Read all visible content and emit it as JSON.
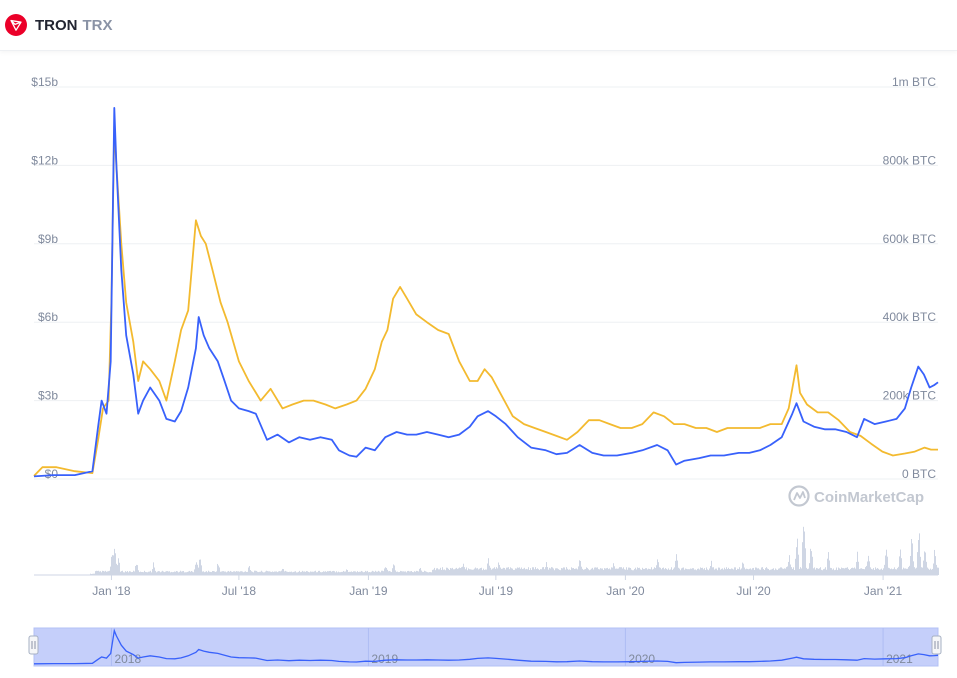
{
  "header": {
    "name": "TRON",
    "symbol": "TRX",
    "logo_icon": "tron-logo-icon"
  },
  "watermark": "CoinMarketCap",
  "colors": {
    "market_cap": "#3861fb",
    "price_btc": "#f3ba2f",
    "volume": "#cfd6e4",
    "navigator_fill": "#c5cffa",
    "grid": "#eef0f3",
    "tick_text": "#808a9d"
  },
  "chart_data": {
    "type": "line",
    "left_axis": {
      "ticks": [
        "$0",
        "$3b",
        "$6b",
        "$9b",
        "$12b",
        "$15b"
      ],
      "ylim": [
        0,
        15
      ]
    },
    "right_axis": {
      "ticks": [
        "0 BTC",
        "200k BTC",
        "400k BTC",
        "600k BTC",
        "800k BTC",
        "1m BTC"
      ],
      "ylim": [
        0,
        1000
      ]
    },
    "x_ticks": [
      "Jan '18",
      "Jul '18",
      "Jan '19",
      "Jul '19",
      "Jan '20",
      "Jul '20",
      "Jan '21"
    ],
    "x_tick_dates": [
      "2018-01-01",
      "2018-07-01",
      "2019-01-01",
      "2019-07-01",
      "2020-01-01",
      "2020-07-01",
      "2021-01-01"
    ],
    "xlim": [
      "2017-09-13",
      "2021-03-20"
    ],
    "navigator_ticks": [
      "2018",
      "2019",
      "2020",
      "2021"
    ],
    "series": [
      {
        "key": "market_cap",
        "units": "$b",
        "points": [
          [
            "2017-09-13",
            0.1
          ],
          [
            "2017-10-10",
            0.15
          ],
          [
            "2017-11-10",
            0.15
          ],
          [
            "2017-12-05",
            0.3
          ],
          [
            "2017-12-13",
            2.0
          ],
          [
            "2017-12-18",
            3.0
          ],
          [
            "2017-12-25",
            2.5
          ],
          [
            "2017-12-31",
            4.5
          ],
          [
            "2018-01-05",
            14.2
          ],
          [
            "2018-01-08",
            12.0
          ],
          [
            "2018-01-15",
            8.0
          ],
          [
            "2018-01-22",
            5.5
          ],
          [
            "2018-02-01",
            4.0
          ],
          [
            "2018-02-08",
            2.5
          ],
          [
            "2018-02-15",
            3.0
          ],
          [
            "2018-02-25",
            3.5
          ],
          [
            "2018-03-10",
            3.0
          ],
          [
            "2018-03-20",
            2.3
          ],
          [
            "2018-04-01",
            2.2
          ],
          [
            "2018-04-10",
            2.6
          ],
          [
            "2018-04-20",
            3.5
          ],
          [
            "2018-05-01",
            5.0
          ],
          [
            "2018-05-05",
            6.2
          ],
          [
            "2018-05-12",
            5.5
          ],
          [
            "2018-05-20",
            5.0
          ],
          [
            "2018-06-01",
            4.5
          ],
          [
            "2018-06-10",
            3.8
          ],
          [
            "2018-06-20",
            3.0
          ],
          [
            "2018-07-01",
            2.7
          ],
          [
            "2018-07-15",
            2.6
          ],
          [
            "2018-07-25",
            2.5
          ],
          [
            "2018-08-10",
            1.5
          ],
          [
            "2018-08-25",
            1.7
          ],
          [
            "2018-09-10",
            1.4
          ],
          [
            "2018-09-25",
            1.6
          ],
          [
            "2018-10-10",
            1.5
          ],
          [
            "2018-10-25",
            1.6
          ],
          [
            "2018-11-10",
            1.5
          ],
          [
            "2018-11-20",
            1.1
          ],
          [
            "2018-12-05",
            0.9
          ],
          [
            "2018-12-15",
            0.85
          ],
          [
            "2018-12-28",
            1.2
          ],
          [
            "2019-01-10",
            1.1
          ],
          [
            "2019-01-25",
            1.6
          ],
          [
            "2019-02-10",
            1.8
          ],
          [
            "2019-02-25",
            1.7
          ],
          [
            "2019-03-10",
            1.7
          ],
          [
            "2019-03-25",
            1.8
          ],
          [
            "2019-04-10",
            1.7
          ],
          [
            "2019-04-25",
            1.6
          ],
          [
            "2019-05-10",
            1.7
          ],
          [
            "2019-05-25",
            2.0
          ],
          [
            "2019-06-05",
            2.4
          ],
          [
            "2019-06-20",
            2.6
          ],
          [
            "2019-07-01",
            2.4
          ],
          [
            "2019-07-15",
            2.1
          ],
          [
            "2019-08-01",
            1.6
          ],
          [
            "2019-08-20",
            1.2
          ],
          [
            "2019-09-10",
            1.1
          ],
          [
            "2019-09-25",
            0.95
          ],
          [
            "2019-10-10",
            1.0
          ],
          [
            "2019-10-28",
            1.3
          ],
          [
            "2019-11-15",
            1.0
          ],
          [
            "2019-12-01",
            0.9
          ],
          [
            "2019-12-20",
            0.9
          ],
          [
            "2020-01-10",
            1.0
          ],
          [
            "2020-01-25",
            1.1
          ],
          [
            "2020-02-15",
            1.3
          ],
          [
            "2020-03-01",
            1.1
          ],
          [
            "2020-03-13",
            0.55
          ],
          [
            "2020-03-25",
            0.7
          ],
          [
            "2020-04-15",
            0.8
          ],
          [
            "2020-05-01",
            0.9
          ],
          [
            "2020-05-20",
            0.9
          ],
          [
            "2020-06-10",
            1.0
          ],
          [
            "2020-06-25",
            1.0
          ],
          [
            "2020-07-10",
            1.1
          ],
          [
            "2020-07-25",
            1.3
          ],
          [
            "2020-08-10",
            1.6
          ],
          [
            "2020-08-25",
            2.5
          ],
          [
            "2020-08-31",
            2.9
          ],
          [
            "2020-09-10",
            2.2
          ],
          [
            "2020-09-25",
            2.0
          ],
          [
            "2020-10-10",
            1.9
          ],
          [
            "2020-10-25",
            1.9
          ],
          [
            "2020-11-10",
            1.8
          ],
          [
            "2020-11-25",
            1.6
          ],
          [
            "2020-12-05",
            2.3
          ],
          [
            "2020-12-20",
            2.1
          ],
          [
            "2021-01-05",
            2.2
          ],
          [
            "2021-01-20",
            2.3
          ],
          [
            "2021-02-01",
            2.7
          ],
          [
            "2021-02-10",
            3.5
          ],
          [
            "2021-02-20",
            4.3
          ],
          [
            "2021-02-28",
            4.0
          ],
          [
            "2021-03-08",
            3.5
          ],
          [
            "2021-03-15",
            3.6
          ],
          [
            "2021-03-20",
            3.7
          ]
        ]
      },
      {
        "key": "price_btc",
        "units": "k BTC",
        "points": [
          [
            "2017-09-13",
            8
          ],
          [
            "2017-09-25",
            30
          ],
          [
            "2017-10-15",
            30
          ],
          [
            "2017-11-10",
            20
          ],
          [
            "2017-12-05",
            15
          ],
          [
            "2017-12-13",
            100
          ],
          [
            "2017-12-20",
            180
          ],
          [
            "2017-12-28",
            200
          ],
          [
            "2018-01-01",
            450
          ],
          [
            "2018-01-05",
            900
          ],
          [
            "2018-01-08",
            800
          ],
          [
            "2018-01-15",
            600
          ],
          [
            "2018-01-22",
            450
          ],
          [
            "2018-02-01",
            350
          ],
          [
            "2018-02-08",
            250
          ],
          [
            "2018-02-15",
            300
          ],
          [
            "2018-02-25",
            280
          ],
          [
            "2018-03-10",
            250
          ],
          [
            "2018-03-20",
            200
          ],
          [
            "2018-04-01",
            300
          ],
          [
            "2018-04-10",
            380
          ],
          [
            "2018-04-20",
            430
          ],
          [
            "2018-05-01",
            660
          ],
          [
            "2018-05-08",
            620
          ],
          [
            "2018-05-15",
            600
          ],
          [
            "2018-05-25",
            530
          ],
          [
            "2018-06-05",
            450
          ],
          [
            "2018-06-15",
            400
          ],
          [
            "2018-07-01",
            300
          ],
          [
            "2018-07-15",
            250
          ],
          [
            "2018-08-01",
            200
          ],
          [
            "2018-08-15",
            230
          ],
          [
            "2018-09-01",
            180
          ],
          [
            "2018-09-15",
            190
          ],
          [
            "2018-10-01",
            200
          ],
          [
            "2018-10-15",
            200
          ],
          [
            "2018-11-01",
            190
          ],
          [
            "2018-11-15",
            180
          ],
          [
            "2018-12-01",
            190
          ],
          [
            "2018-12-15",
            200
          ],
          [
            "2018-12-28",
            230
          ],
          [
            "2019-01-10",
            280
          ],
          [
            "2019-01-20",
            350
          ],
          [
            "2019-01-28",
            380
          ],
          [
            "2019-02-05",
            460
          ],
          [
            "2019-02-15",
            490
          ],
          [
            "2019-02-25",
            460
          ],
          [
            "2019-03-10",
            420
          ],
          [
            "2019-03-25",
            400
          ],
          [
            "2019-04-10",
            380
          ],
          [
            "2019-04-25",
            370
          ],
          [
            "2019-05-10",
            300
          ],
          [
            "2019-05-25",
            250
          ],
          [
            "2019-06-05",
            250
          ],
          [
            "2019-06-15",
            280
          ],
          [
            "2019-06-25",
            260
          ],
          [
            "2019-07-10",
            210
          ],
          [
            "2019-07-25",
            160
          ],
          [
            "2019-08-10",
            140
          ],
          [
            "2019-08-25",
            130
          ],
          [
            "2019-09-10",
            120
          ],
          [
            "2019-09-25",
            110
          ],
          [
            "2019-10-10",
            100
          ],
          [
            "2019-10-25",
            120
          ],
          [
            "2019-11-10",
            150
          ],
          [
            "2019-11-25",
            150
          ],
          [
            "2019-12-10",
            140
          ],
          [
            "2019-12-25",
            130
          ],
          [
            "2020-01-10",
            130
          ],
          [
            "2020-01-25",
            140
          ],
          [
            "2020-02-10",
            170
          ],
          [
            "2020-02-25",
            160
          ],
          [
            "2020-03-10",
            140
          ],
          [
            "2020-03-25",
            140
          ],
          [
            "2020-04-10",
            130
          ],
          [
            "2020-04-25",
            130
          ],
          [
            "2020-05-10",
            120
          ],
          [
            "2020-05-25",
            130
          ],
          [
            "2020-06-10",
            130
          ],
          [
            "2020-06-25",
            130
          ],
          [
            "2020-07-10",
            130
          ],
          [
            "2020-07-25",
            140
          ],
          [
            "2020-08-10",
            140
          ],
          [
            "2020-08-20",
            180
          ],
          [
            "2020-08-31",
            290
          ],
          [
            "2020-09-05",
            220
          ],
          [
            "2020-09-15",
            190
          ],
          [
            "2020-09-30",
            170
          ],
          [
            "2020-10-15",
            170
          ],
          [
            "2020-10-30",
            150
          ],
          [
            "2020-11-15",
            120
          ],
          [
            "2020-11-30",
            110
          ],
          [
            "2020-12-15",
            90
          ],
          [
            "2020-12-31",
            70
          ],
          [
            "2021-01-15",
            60
          ],
          [
            "2021-02-01",
            65
          ],
          [
            "2021-02-15",
            70
          ],
          [
            "2021-03-01",
            80
          ],
          [
            "2021-03-10",
            75
          ],
          [
            "2021-03-20",
            75
          ]
        ]
      }
    ],
    "volume_peaks": [
      [
        "2017-12-10",
        0.05
      ],
      [
        "2018-01-01",
        0.35
      ],
      [
        "2018-01-05",
        0.5
      ],
      [
        "2018-01-10",
        0.3
      ],
      [
        "2018-02-05",
        0.22
      ],
      [
        "2018-03-01",
        0.2
      ],
      [
        "2018-05-01",
        0.25
      ],
      [
        "2018-05-06",
        0.32
      ],
      [
        "2018-06-01",
        0.22
      ],
      [
        "2018-07-15",
        0.18
      ],
      [
        "2018-09-01",
        0.14
      ],
      [
        "2018-12-01",
        0.12
      ],
      [
        "2019-01-25",
        0.18
      ],
      [
        "2019-02-05",
        0.22
      ],
      [
        "2019-03-15",
        0.14
      ],
      [
        "2019-05-15",
        0.2
      ],
      [
        "2019-06-20",
        0.3
      ],
      [
        "2019-07-05",
        0.26
      ],
      [
        "2019-09-10",
        0.22
      ],
      [
        "2019-10-28",
        0.3
      ],
      [
        "2019-12-15",
        0.22
      ],
      [
        "2020-02-15",
        0.28
      ],
      [
        "2020-03-13",
        0.35
      ],
      [
        "2020-05-01",
        0.24
      ],
      [
        "2020-06-15",
        0.22
      ],
      [
        "2020-08-20",
        0.4
      ],
      [
        "2020-08-31",
        0.65
      ],
      [
        "2020-09-10",
        1.0
      ],
      [
        "2020-09-20",
        0.6
      ],
      [
        "2020-10-15",
        0.4
      ],
      [
        "2020-11-25",
        0.35
      ],
      [
        "2020-12-10",
        0.38
      ],
      [
        "2021-01-05",
        0.45
      ],
      [
        "2021-01-25",
        0.4
      ],
      [
        "2021-02-10",
        0.65
      ],
      [
        "2021-02-20",
        0.85
      ],
      [
        "2021-03-01",
        0.55
      ],
      [
        "2021-03-15",
        0.45
      ]
    ]
  }
}
